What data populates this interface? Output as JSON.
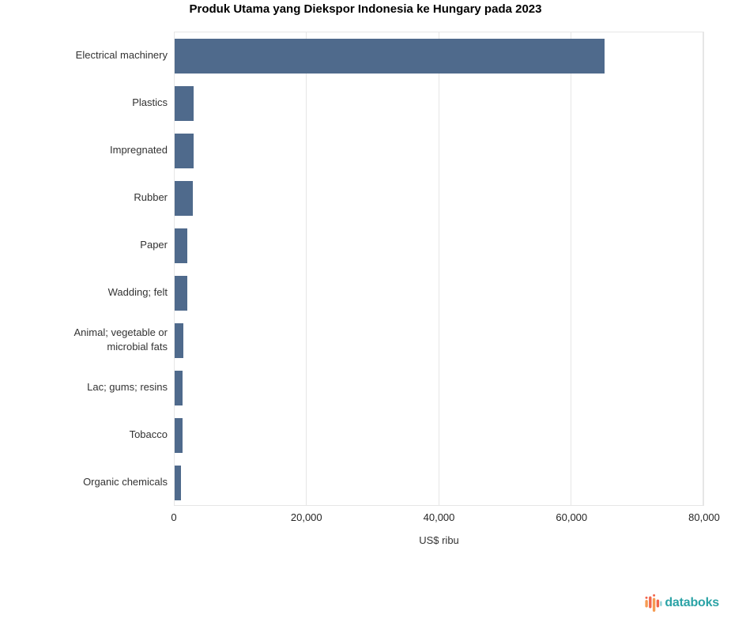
{
  "title": "Produk Utama yang Diekspor Indonesia ke Hungary pada 2023",
  "chart_data": {
    "type": "bar",
    "orientation": "horizontal",
    "categories": [
      "Electrical machinery",
      "Plastics",
      "Impregnated",
      "Rubber",
      "Paper",
      "Wadding; felt",
      "Animal; vegetable or microbial fats",
      "Lac; gums; resins",
      "Tobacco",
      "Organic chemicals"
    ],
    "values": [
      65000,
      2900,
      2850,
      2800,
      1900,
      1870,
      1280,
      1230,
      1150,
      1000
    ],
    "title": "Produk Utama yang Diekspor Indonesia ke Hungary pada 2023",
    "xlabel": "US$ ribu",
    "ylabel": "",
    "xlim": [
      0,
      80000
    ],
    "xticks": [
      0,
      20000,
      40000,
      60000,
      80000
    ],
    "xtick_labels": [
      "0",
      "20,000",
      "40,000",
      "60,000",
      "80,000"
    ],
    "grid": true,
    "legend": "none",
    "bar_color": "#4f6a8c"
  },
  "branding": {
    "logo_text": "databoks",
    "logo_text_color": "#2ba3a6",
    "logo_icon": "equalizer-bars-icon",
    "logo_icon_colors": [
      "#f59b52",
      "#f2664c",
      "#8fd0d4"
    ]
  },
  "colors": {
    "background": "#ffffff",
    "grid": "#e6e6e6",
    "plot_border": "#e6e6e6",
    "axis_text": "#262626",
    "label_text": "#333333",
    "title_text": "#000000"
  }
}
